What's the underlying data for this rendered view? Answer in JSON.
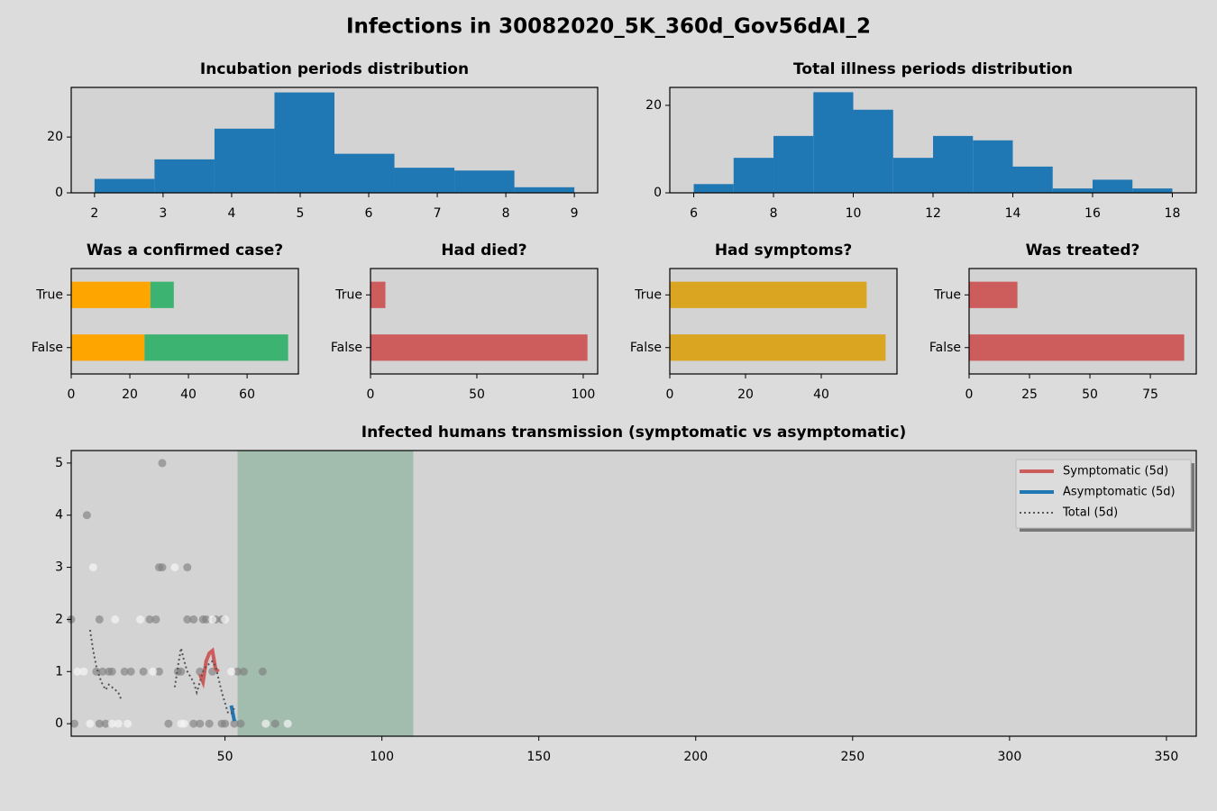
{
  "title": "Infections in 30082020_5K_360d_Gov56dAI_2",
  "chart_data": [
    {
      "type": "histogram",
      "title": "Incubation periods distribution",
      "bins": [
        2,
        2.875,
        3.75,
        4.625,
        5.5,
        6.375,
        7.25,
        8.125,
        9
      ],
      "counts": [
        5,
        12,
        23,
        36,
        14,
        9,
        8,
        2
      ],
      "color": "#1f77b4",
      "xlim": [
        1.66,
        9.34
      ],
      "ylim": [
        0,
        37.8
      ],
      "xticks": [
        2,
        3,
        4,
        5,
        6,
        7,
        8,
        9
      ],
      "yticks": [
        0,
        20
      ]
    },
    {
      "type": "histogram",
      "title": "Total illness periods distribution",
      "bins": [
        6,
        7,
        8,
        9,
        10,
        11,
        12,
        13,
        14,
        15,
        16,
        17,
        18
      ],
      "counts": [
        2,
        8,
        13,
        23,
        19,
        8,
        13,
        12,
        6,
        1,
        3,
        1
      ],
      "color": "#1f77b4",
      "xlim": [
        5.4,
        18.6
      ],
      "ylim": [
        0,
        24.1
      ],
      "xticks": [
        6,
        8,
        10,
        12,
        14,
        16,
        18
      ],
      "yticks": [
        0,
        20
      ]
    },
    {
      "type": "barh",
      "title": "Was a confirmed case?",
      "categories": [
        "True",
        "False"
      ],
      "series": [
        {
          "color": "#ffa500",
          "values": [
            27,
            25
          ]
        },
        {
          "color": "#3cb371",
          "values": [
            8,
            49
          ]
        }
      ],
      "xlim": [
        0,
        77.5
      ],
      "xticks": [
        0,
        20,
        40,
        60
      ]
    },
    {
      "type": "barh",
      "title": "Had died?",
      "categories": [
        "True",
        "False"
      ],
      "series": [
        {
          "color": "#cd5c5c",
          "values": [
            7,
            102
          ]
        }
      ],
      "xlim": [
        0,
        106.8
      ],
      "xticks": [
        0,
        50,
        100
      ]
    },
    {
      "type": "barh",
      "title": "Had symptoms?",
      "categories": [
        "True",
        "False"
      ],
      "series": [
        {
          "color": "#daa520",
          "values": [
            52,
            57
          ]
        }
      ],
      "xlim": [
        0,
        60
      ],
      "xticks": [
        0,
        20,
        40
      ]
    },
    {
      "type": "barh",
      "title": "Was treated?",
      "categories": [
        "True",
        "False"
      ],
      "series": [
        {
          "color": "#cd5c5c",
          "values": [
            20,
            89
          ]
        }
      ],
      "xlim": [
        0,
        94
      ],
      "xticks": [
        0,
        25,
        50,
        75
      ]
    },
    {
      "type": "scatter",
      "title": "Infected humans transmission (symptomatic vs asymptomatic)",
      "xlim": [
        1,
        359.5
      ],
      "ylim": [
        -0.24,
        5.24
      ],
      "xticks": [
        50,
        100,
        150,
        200,
        250,
        300,
        350
      ],
      "yticks": [
        0,
        1,
        2,
        3,
        4,
        5
      ],
      "span": [
        54,
        110
      ],
      "span_color": "#a2bdae",
      "legend": "upper right",
      "points": [
        {
          "color": "#808080",
          "alpha": 0.65,
          "x": [
            30,
            6,
            29,
            30,
            38,
            1,
            10,
            26,
            28,
            38,
            40,
            43,
            44,
            47,
            49,
            9,
            11,
            13,
            14,
            18,
            20,
            24,
            29,
            35,
            36,
            42,
            46,
            54,
            56,
            62,
            2,
            10,
            12,
            32,
            40,
            42,
            45,
            49,
            50,
            53,
            55,
            66
          ],
          "values": [
            5,
            4,
            3,
            3,
            3,
            2,
            2,
            2,
            2,
            2,
            2,
            2,
            2,
            2,
            2,
            1,
            1,
            1,
            1,
            1,
            1,
            1,
            1,
            1,
            1,
            1,
            1,
            1,
            1,
            1,
            0,
            0,
            0,
            0,
            0,
            0,
            0,
            0,
            0,
            0,
            0,
            0
          ]
        },
        {
          "color": "#f5f5f5",
          "alpha": 0.7,
          "x": [
            8,
            34,
            15,
            23,
            46,
            50,
            3,
            5,
            27,
            52,
            7,
            14,
            16,
            19,
            36,
            37,
            63,
            70
          ],
          "values": [
            3,
            3,
            2,
            2,
            2,
            2,
            1,
            1,
            1,
            1,
            0,
            0,
            0,
            0,
            0,
            0,
            0,
            0
          ]
        }
      ],
      "series": [
        {
          "name": "Symptomatic (5d)",
          "color": "#cd5c5c",
          "linestyle": "solid",
          "width": 4,
          "x": [
            42,
            43,
            44,
            45,
            46,
            47,
            48
          ],
          "values": [
            0.95,
            0.8,
            1.2,
            1.35,
            1.4,
            1.05,
            1.0
          ]
        },
        {
          "name": "Asymptomatic (5d)",
          "color": "#1f77b4",
          "linestyle": "solid",
          "width": 4,
          "x": [
            52,
            53
          ],
          "values": [
            0.35,
            0.05
          ]
        },
        {
          "name": "Total (5d)",
          "color": "#555555",
          "linestyle": "dotted",
          "width": 2,
          "x": [
            7,
            8,
            9,
            10,
            11,
            12,
            13,
            14,
            15,
            16,
            17,
            18,
            34,
            35,
            36,
            37,
            38,
            39,
            40,
            41,
            42,
            43,
            44,
            45,
            46,
            47,
            48,
            49,
            50,
            51,
            52,
            53
          ],
          "values": [
            1.8,
            1.4,
            1.1,
            0.9,
            0.75,
            0.65,
            0.75,
            0.7,
            0.65,
            0.6,
            0.45,
            null,
            0.7,
            1.1,
            1.45,
            1.2,
            1.0,
            0.9,
            0.8,
            0.6,
            0.8,
            1.0,
            1.1,
            1.15,
            1.2,
            1.1,
            0.85,
            0.6,
            0.4,
            0.2,
            0.2,
            0.3
          ]
        }
      ]
    }
  ]
}
